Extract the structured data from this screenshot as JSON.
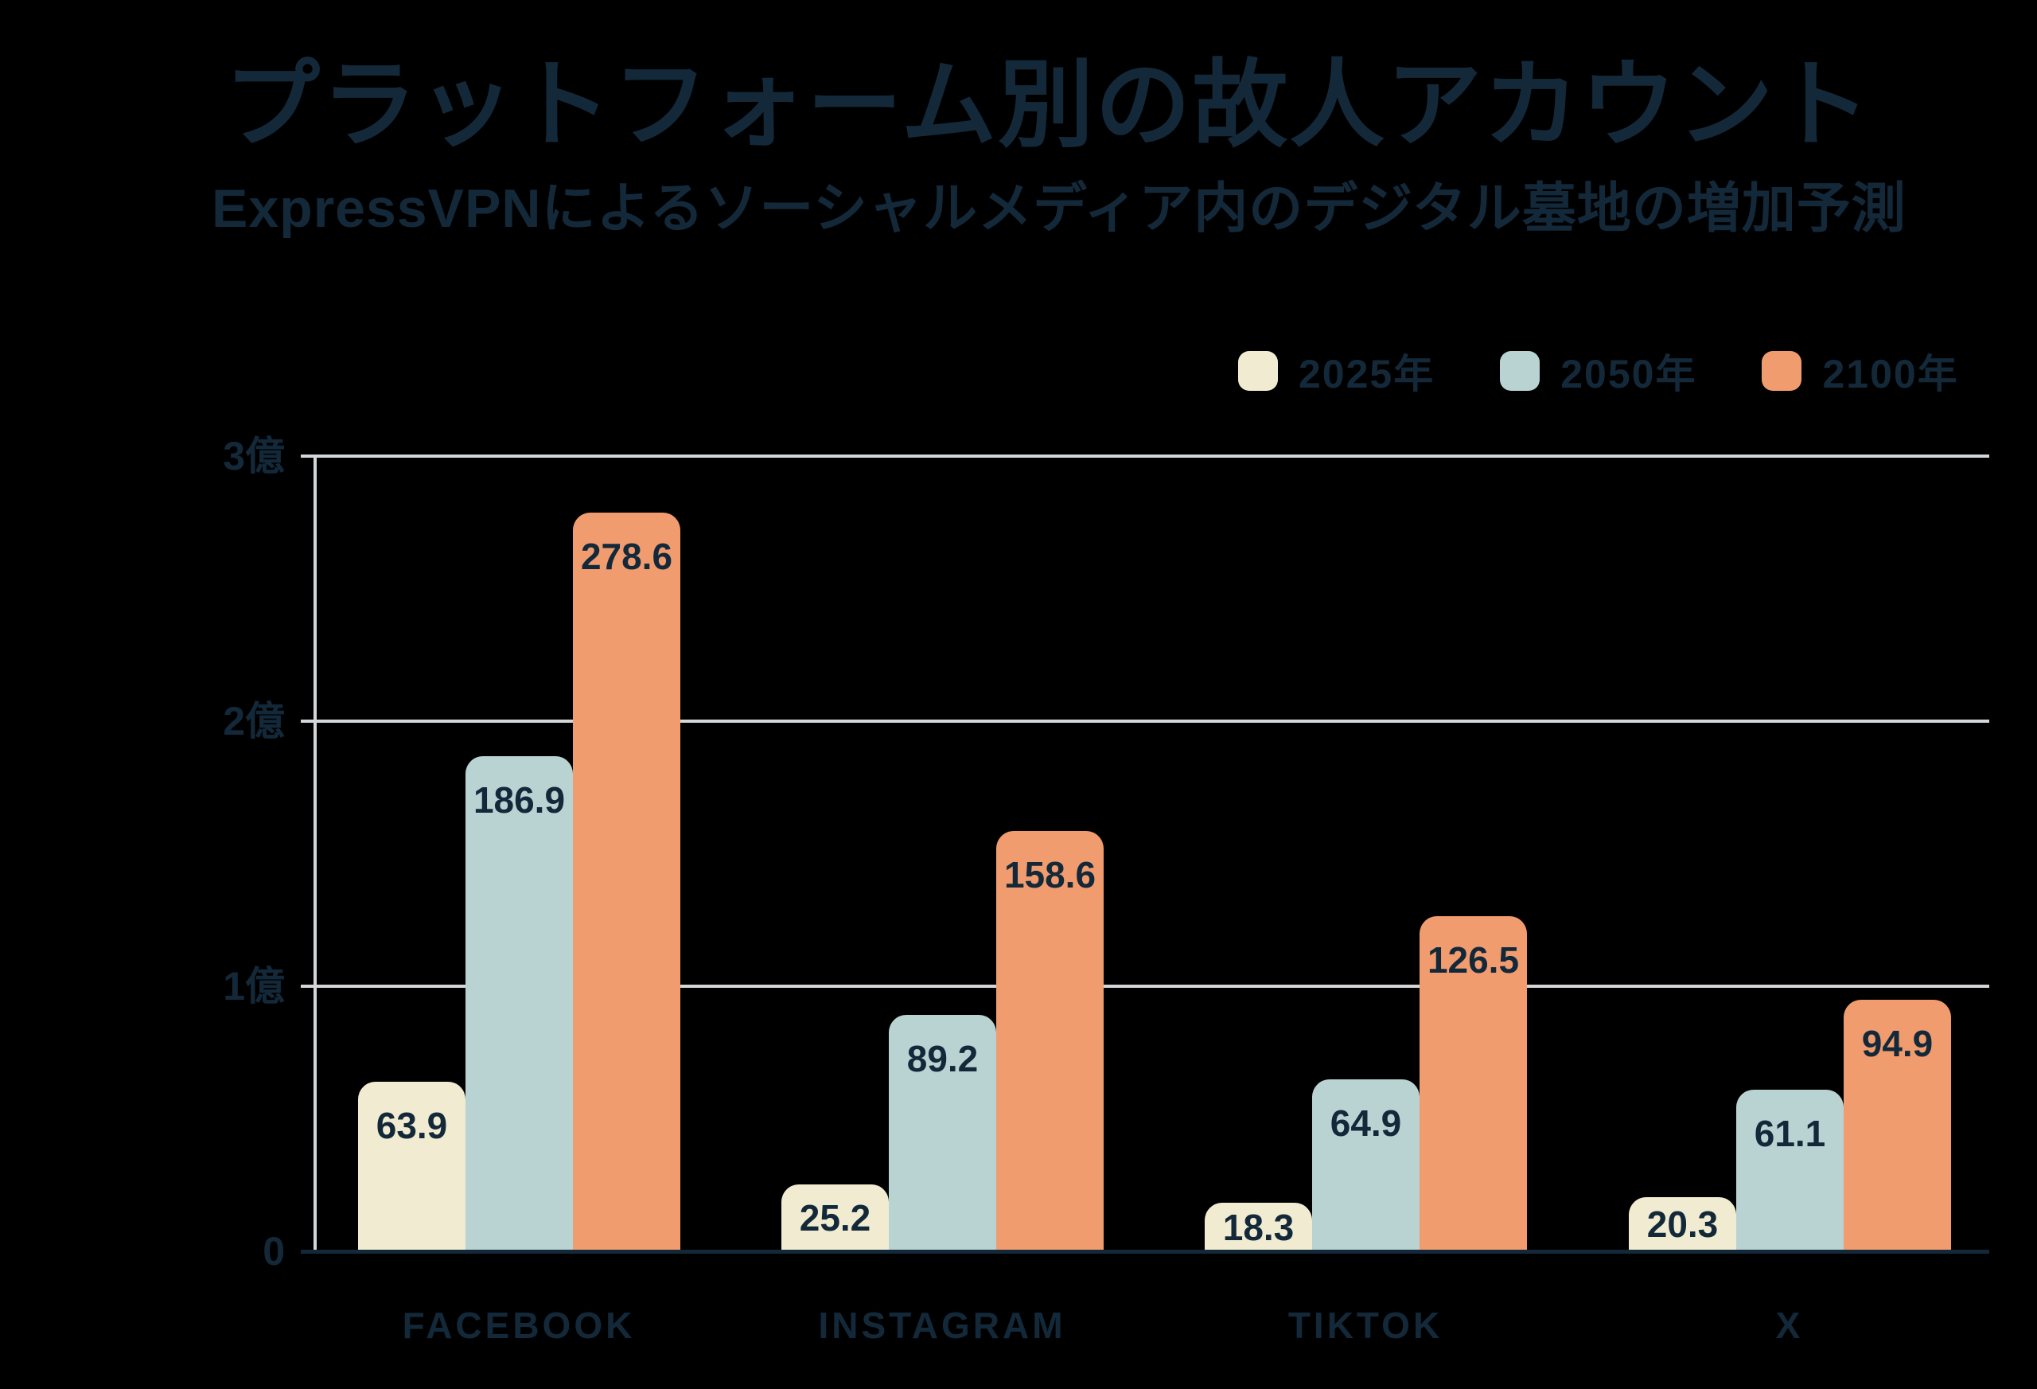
{
  "title": "プラットフォーム別の故人アカウント",
  "subtitle": "ExpressVPNによるソーシャルメディア内のデジタル墓地の増加予測",
  "colors": {
    "background": "#000000",
    "text_navy": "#13293A",
    "gridline": "#D3D7DA",
    "baseline": "#13293A",
    "series_2025": "#F1ECD1",
    "series_2050": "#B9D2D2",
    "series_2100": "#F19C6E"
  },
  "chart_data": {
    "type": "bar",
    "categories": [
      "FACEBOOK",
      "INSTAGRAM",
      "TIKTOK",
      "X"
    ],
    "series": [
      {
        "name": "2025年",
        "color": "#F1ECD1",
        "values": [
          63.9,
          25.2,
          18.3,
          20.3
        ]
      },
      {
        "name": "2050年",
        "color": "#B9D2D2",
        "values": [
          186.9,
          89.2,
          64.9,
          61.1
        ]
      },
      {
        "name": "2100年",
        "color": "#F19C6E",
        "values": [
          278.6,
          158.6,
          126.5,
          94.9
        ]
      }
    ],
    "y_ticks": [
      {
        "value": 0,
        "label": "0"
      },
      {
        "value": 100,
        "label": "1億"
      },
      {
        "value": 200,
        "label": "2億"
      },
      {
        "value": 300,
        "label": "3億"
      }
    ],
    "ylim": [
      0,
      300
    ],
    "grid": true,
    "value_labels": true,
    "legend_position": "top-right"
  }
}
